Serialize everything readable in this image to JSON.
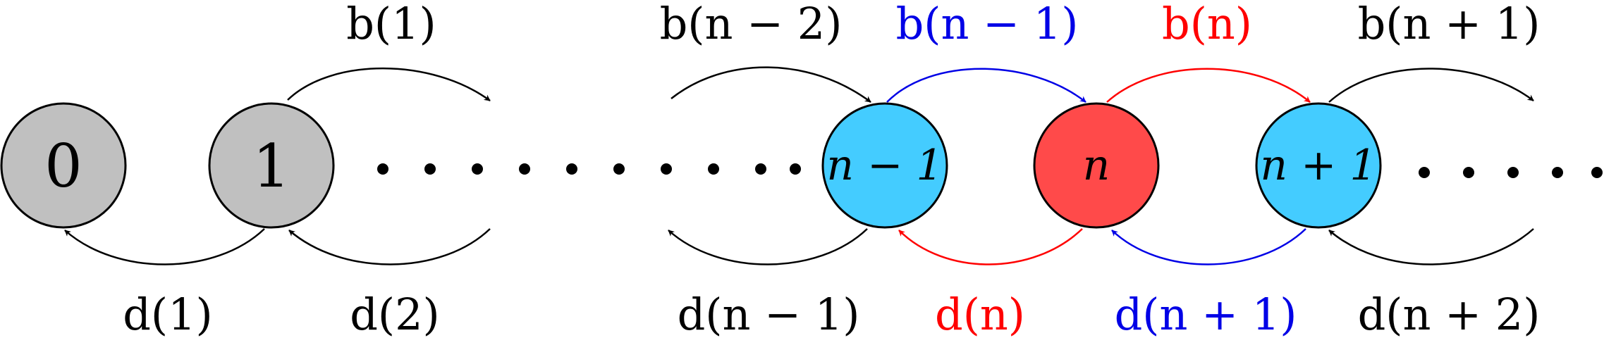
{
  "diagram": {
    "colors": {
      "gray_fill": "#c0c0c0",
      "cyan_fill": "#44ccff",
      "red_fill": "#ff4a4a",
      "black": "#000000",
      "blue": "#0000e6",
      "red": "#ff0000"
    },
    "nodes": {
      "zero": {
        "label": "0"
      },
      "one": {
        "label": "1"
      },
      "n_minus_1": {
        "label": "n − 1"
      },
      "n": {
        "label": "n"
      },
      "n_plus_1": {
        "label": "n + 1"
      }
    },
    "birth_rates": {
      "b1": "b(1)",
      "b_n_minus_2": "b(n − 2)",
      "b_n_minus_1": "b(n − 1)",
      "b_n": "b(n)",
      "b_n_plus_1": "b(n + 1)"
    },
    "death_rates": {
      "d1": "d(1)",
      "d2": "d(2)",
      "d_n_minus_1": "d(n − 1)",
      "d_n": "d(n)",
      "d_n_plus_1": "d(n + 1)",
      "d_n_plus_2": "d(n + 2)"
    }
  }
}
